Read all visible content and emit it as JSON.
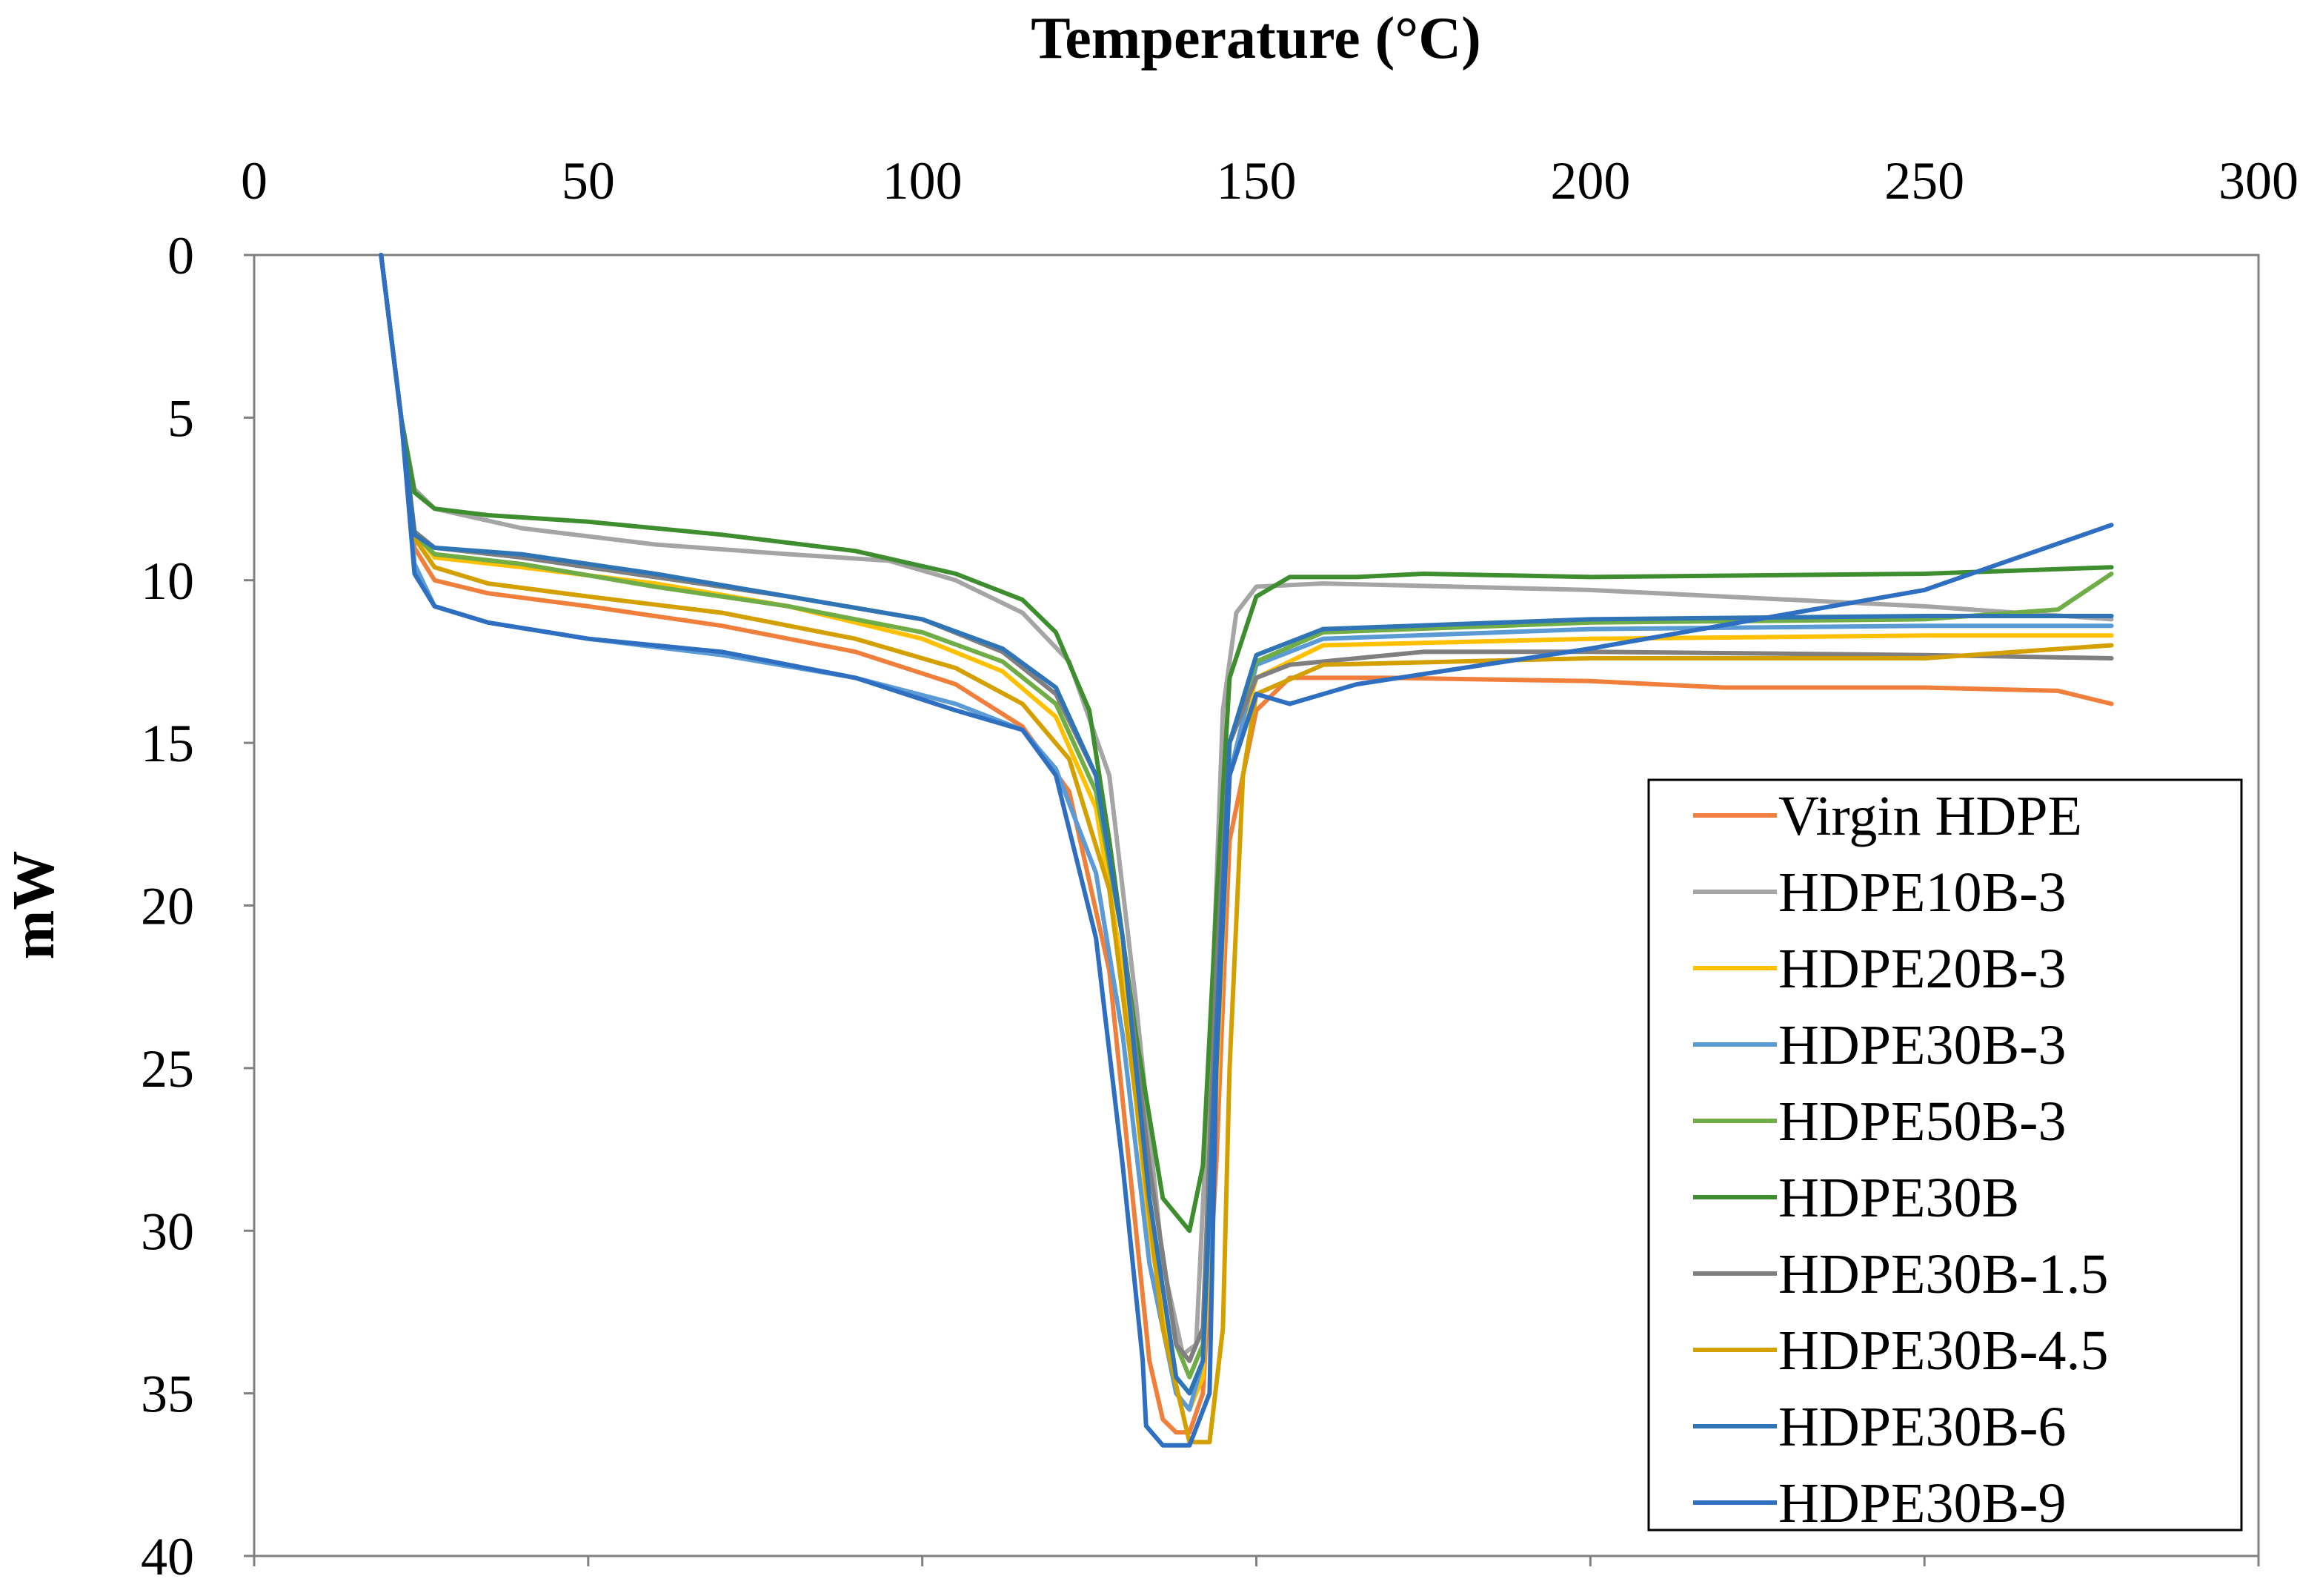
{
  "chart_data": {
    "type": "line",
    "title": "",
    "xlabel": "Temperature (°C)",
    "ylabel": "mW",
    "xlim": [
      0,
      300
    ],
    "ylim": [
      0,
      40
    ],
    "y_inverted": true,
    "x_ticks": [
      "0",
      "50",
      "100",
      "150",
      "200",
      "250",
      "300"
    ],
    "y_ticks": [
      "0",
      "5",
      "10",
      "15",
      "20",
      "25",
      "30",
      "35",
      "40"
    ],
    "grid": false,
    "legend_position": "bottom-right",
    "series": [
      {
        "name": "Virgin HDPE",
        "color": "#F07F3C",
        "x": [
          19,
          22,
          24,
          27,
          35,
          50,
          70,
          90,
          105,
          115,
          122,
          128,
          132,
          134,
          136,
          138,
          140,
          142,
          144,
          146,
          150,
          155,
          170,
          200,
          220,
          250,
          270,
          278
        ],
        "y": [
          0,
          5,
          9,
          10,
          10.4,
          10.8,
          11.4,
          12.2,
          13.2,
          14.5,
          16.5,
          22,
          30,
          34,
          35.8,
          36.2,
          36.2,
          35,
          28,
          18,
          14,
          13,
          13,
          13.1,
          13.3,
          13.3,
          13.4,
          13.8
        ]
      },
      {
        "name": "HDPE10B-3",
        "color": "#A5A5A5",
        "x": [
          19,
          22,
          24,
          27,
          40,
          60,
          80,
          95,
          105,
          115,
          122,
          128,
          132,
          136,
          139,
          141,
          143,
          145,
          147,
          150,
          160,
          200,
          250,
          278
        ],
        "y": [
          0,
          5,
          7.2,
          7.8,
          8.4,
          8.9,
          9.2,
          9.4,
          10,
          11,
          12.5,
          16,
          23,
          31,
          33.8,
          33.5,
          25,
          14,
          11,
          10.2,
          10.1,
          10.3,
          10.8,
          11.2
        ]
      },
      {
        "name": "HDPE20B-3",
        "color": "#FFC000",
        "x": [
          19,
          22,
          24,
          27,
          40,
          60,
          80,
          100,
          112,
          120,
          126,
          130,
          134,
          138,
          140,
          142,
          144,
          146,
          150,
          160,
          200,
          250,
          278
        ],
        "y": [
          0,
          5,
          8.5,
          9.3,
          9.6,
          10.1,
          10.8,
          11.8,
          12.8,
          14.2,
          17,
          22,
          30,
          35,
          35.5,
          34.5,
          26,
          16,
          13,
          12,
          11.8,
          11.7,
          11.7
        ]
      },
      {
        "name": "HDPE30B-3",
        "color": "#5B9BD5",
        "x": [
          19,
          22,
          24,
          27,
          35,
          50,
          70,
          90,
          105,
          115,
          120,
          126,
          130,
          134,
          138,
          140,
          142,
          144,
          146,
          150,
          160,
          200,
          250,
          278
        ],
        "y": [
          0,
          5,
          9.5,
          10.8,
          11.3,
          11.8,
          12.3,
          13,
          13.8,
          14.6,
          15.8,
          19,
          24,
          31,
          35,
          35.5,
          34,
          25,
          16,
          12.6,
          11.8,
          11.5,
          11.4,
          11.4
        ]
      },
      {
        "name": "HDPE50B-3",
        "color": "#70AD47",
        "x": [
          19,
          22,
          24,
          27,
          40,
          60,
          80,
          100,
          112,
          120,
          126,
          130,
          134,
          138,
          140,
          142,
          144,
          146,
          150,
          160,
          200,
          250,
          270,
          278
        ],
        "y": [
          0,
          5,
          8.6,
          9.2,
          9.5,
          10.2,
          10.8,
          11.6,
          12.5,
          13.8,
          16.5,
          21,
          28,
          33.5,
          34.5,
          33.5,
          24,
          15,
          12.5,
          11.6,
          11.3,
          11.2,
          10.9,
          9.8
        ]
      },
      {
        "name": "HDPE30B",
        "color": "#3E8E2F",
        "x": [
          19,
          22,
          24,
          27,
          35,
          50,
          70,
          90,
          105,
          115,
          120,
          125,
          128,
          132,
          136,
          140,
          142,
          144,
          146,
          150,
          155,
          165,
          175,
          200,
          250,
          278
        ],
        "y": [
          0,
          5,
          7.3,
          7.8,
          8,
          8.2,
          8.6,
          9.1,
          9.8,
          10.6,
          11.6,
          14,
          18,
          24,
          29,
          30,
          28,
          20,
          13,
          10.5,
          9.9,
          9.9,
          9.8,
          9.9,
          9.8,
          9.6
        ]
      },
      {
        "name": "HDPE30B-1.5",
        "color": "#7F7F7F",
        "x": [
          19,
          22,
          24,
          27,
          40,
          60,
          80,
          100,
          112,
          120,
          126,
          130,
          134,
          138,
          140,
          142,
          144,
          146,
          150,
          155,
          175,
          200,
          250,
          278
        ],
        "y": [
          0,
          5,
          8.5,
          9,
          9.3,
          9.9,
          10.5,
          11.2,
          12.2,
          13.5,
          16,
          21,
          28,
          33.5,
          34,
          33,
          22,
          15,
          13,
          12.6,
          12.2,
          12.2,
          12.3,
          12.4
        ]
      },
      {
        "name": "HDPE30B-4.5",
        "color": "#D4A000",
        "x": [
          19,
          22,
          24,
          27,
          35,
          50,
          70,
          90,
          105,
          115,
          122,
          128,
          132,
          136,
          140,
          143,
          145,
          146,
          148,
          150,
          160,
          200,
          250,
          278
        ],
        "y": [
          0,
          5,
          8.7,
          9.6,
          10.1,
          10.5,
          11,
          11.8,
          12.7,
          13.8,
          15.5,
          19.5,
          26,
          33,
          36.5,
          36.5,
          33,
          25,
          16,
          13.5,
          12.6,
          12.4,
          12.4,
          12
        ]
      },
      {
        "name": "HDPE30B-6",
        "color": "#2F75B5",
        "x": [
          19,
          22,
          24,
          27,
          40,
          60,
          80,
          100,
          112,
          120,
          126,
          130,
          134,
          138,
          140,
          142,
          144,
          146,
          150,
          160,
          200,
          250,
          278
        ],
        "y": [
          0,
          5,
          8.6,
          9,
          9.2,
          9.8,
          10.5,
          11.2,
          12.1,
          13.3,
          16,
          21,
          29,
          34.5,
          35,
          34,
          24,
          15,
          12.3,
          11.5,
          11.2,
          11.1,
          11.1
        ]
      },
      {
        "name": "HDPE30B-9",
        "color": "#2E6FC2",
        "x": [
          19,
          22,
          24,
          27,
          35,
          50,
          70,
          90,
          105,
          115,
          120,
          126,
          130,
          133,
          133.5,
          136,
          140,
          143,
          144,
          146,
          150,
          155,
          160,
          165,
          200,
          250,
          278
        ],
        "y": [
          0,
          5,
          9.8,
          10.8,
          11.3,
          11.8,
          12.2,
          13,
          14,
          14.6,
          16,
          21,
          28,
          34,
          36,
          36.6,
          36.6,
          35,
          25,
          16,
          13.5,
          13.8,
          13.5,
          13.2,
          12.1,
          10.3,
          8.3
        ]
      }
    ]
  }
}
